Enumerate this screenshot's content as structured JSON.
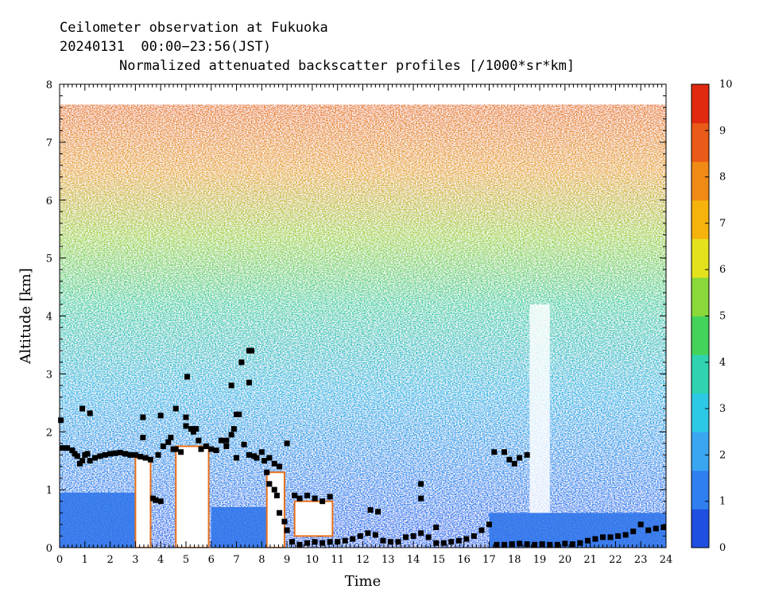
{
  "header": {
    "title_line1": "Ceilometer observation at Fukuoka",
    "title_line2": "20240131  00:00−23:56(JST)",
    "title_line3": "Normalized attenuated backscatter profiles [/1000*sr*km]"
  },
  "chart_data": {
    "type": "heatmap",
    "title": "Normalized attenuated backscatter profiles [/1000*sr*km]",
    "xlabel": "Time",
    "ylabel": "Altitude [km]",
    "xlim": [
      0,
      24
    ],
    "ylim": [
      0,
      8
    ],
    "data_top_altitude_km": 7.65,
    "x_ticks": [
      "0",
      "1",
      "2",
      "3",
      "4",
      "5",
      "6",
      "7",
      "8",
      "9",
      "10",
      "11",
      "12",
      "13",
      "14",
      "15",
      "16",
      "17",
      "18",
      "19",
      "20",
      "21",
      "22",
      "23",
      "24"
    ],
    "y_ticks": [
      "0",
      "1",
      "2",
      "3",
      "4",
      "5",
      "6",
      "7",
      "8"
    ],
    "colorbar": {
      "range": [
        0,
        10
      ],
      "ticks": [
        "0",
        "1",
        "2",
        "3",
        "4",
        "5",
        "6",
        "7",
        "8",
        "9",
        "10"
      ],
      "colors": [
        "#1f4fe0",
        "#2f7ff0",
        "#3aa6f2",
        "#2cc9e6",
        "#2fd3b0",
        "#44d35a",
        "#8ad83a",
        "#e4e21c",
        "#f6b30c",
        "#f08a16",
        "#ea5a18",
        "#e02a10"
      ]
    },
    "series": [
      {
        "name": "",
        "marker": "square",
        "color": "#000000",
        "points": [
          {
            "x": 0.1,
            "y": 1.72
          },
          {
            "x": 0.3,
            "y": 1.72
          },
          {
            "x": 0.5,
            "y": 1.68
          },
          {
            "x": 0.6,
            "y": 1.62
          },
          {
            "x": 0.7,
            "y": 1.58
          },
          {
            "x": 0.8,
            "y": 1.45
          },
          {
            "x": 0.9,
            "y": 1.5
          },
          {
            "x": 1.0,
            "y": 1.6
          },
          {
            "x": 1.1,
            "y": 1.62
          },
          {
            "x": 1.2,
            "y": 1.5
          },
          {
            "x": 1.4,
            "y": 1.55
          },
          {
            "x": 1.6,
            "y": 1.58
          },
          {
            "x": 1.8,
            "y": 1.6
          },
          {
            "x": 2.0,
            "y": 1.62
          },
          {
            "x": 2.2,
            "y": 1.63
          },
          {
            "x": 2.4,
            "y": 1.64
          },
          {
            "x": 2.6,
            "y": 1.62
          },
          {
            "x": 2.8,
            "y": 1.6
          },
          {
            "x": 3.0,
            "y": 1.6
          },
          {
            "x": 3.2,
            "y": 1.57
          },
          {
            "x": 3.4,
            "y": 1.55
          },
          {
            "x": 3.6,
            "y": 1.52
          },
          {
            "x": 3.7,
            "y": 0.85
          },
          {
            "x": 3.8,
            "y": 0.82
          },
          {
            "x": 4.0,
            "y": 0.8
          },
          {
            "x": 3.9,
            "y": 1.6
          },
          {
            "x": 4.1,
            "y": 1.75
          },
          {
            "x": 4.3,
            "y": 1.82
          },
          {
            "x": 4.5,
            "y": 1.7
          },
          {
            "x": 4.6,
            "y": 1.7
          },
          {
            "x": 4.8,
            "y": 1.65
          },
          {
            "x": 5.0,
            "y": 2.1
          },
          {
            "x": 5.2,
            "y": 2.05
          },
          {
            "x": 5.3,
            "y": 2.0
          },
          {
            "x": 5.5,
            "y": 1.85
          },
          {
            "x": 5.6,
            "y": 1.7
          },
          {
            "x": 5.8,
            "y": 1.75
          },
          {
            "x": 6.0,
            "y": 1.7
          },
          {
            "x": 6.2,
            "y": 1.68
          },
          {
            "x": 6.4,
            "y": 1.85
          },
          {
            "x": 6.6,
            "y": 1.75
          },
          {
            "x": 6.8,
            "y": 1.95
          },
          {
            "x": 6.9,
            "y": 2.05
          },
          {
            "x": 7.0,
            "y": 1.55
          },
          {
            "x": 7.1,
            "y": 2.3
          },
          {
            "x": 7.3,
            "y": 1.78
          },
          {
            "x": 7.5,
            "y": 1.6
          },
          {
            "x": 7.7,
            "y": 1.58
          },
          {
            "x": 7.8,
            "y": 1.55
          },
          {
            "x": 8.0,
            "y": 1.65
          },
          {
            "x": 8.1,
            "y": 1.5
          },
          {
            "x": 8.2,
            "y": 1.3
          },
          {
            "x": 8.3,
            "y": 1.1
          },
          {
            "x": 8.5,
            "y": 1.0
          },
          {
            "x": 8.6,
            "y": 0.9
          },
          {
            "x": 8.7,
            "y": 0.6
          },
          {
            "x": 8.9,
            "y": 0.45
          },
          {
            "x": 9.0,
            "y": 0.3
          },
          {
            "x": 9.2,
            "y": 0.1
          },
          {
            "x": 9.5,
            "y": 0.05
          },
          {
            "x": 9.8,
            "y": 0.08
          },
          {
            "x": 10.1,
            "y": 0.1
          },
          {
            "x": 10.4,
            "y": 0.08
          },
          {
            "x": 10.7,
            "y": 0.1
          },
          {
            "x": 11.0,
            "y": 0.1
          },
          {
            "x": 11.3,
            "y": 0.12
          },
          {
            "x": 11.6,
            "y": 0.15
          },
          {
            "x": 11.9,
            "y": 0.2
          },
          {
            "x": 12.2,
            "y": 0.25
          },
          {
            "x": 12.5,
            "y": 0.22
          },
          {
            "x": 12.8,
            "y": 0.12
          },
          {
            "x": 13.1,
            "y": 0.1
          },
          {
            "x": 13.4,
            "y": 0.1
          },
          {
            "x": 13.7,
            "y": 0.18
          },
          {
            "x": 14.0,
            "y": 0.2
          },
          {
            "x": 14.3,
            "y": 0.25
          },
          {
            "x": 14.6,
            "y": 0.18
          },
          {
            "x": 14.9,
            "y": 0.08
          },
          {
            "x": 15.2,
            "y": 0.08
          },
          {
            "x": 15.5,
            "y": 0.1
          },
          {
            "x": 15.8,
            "y": 0.12
          },
          {
            "x": 16.1,
            "y": 0.15
          },
          {
            "x": 16.4,
            "y": 0.2
          },
          {
            "x": 16.7,
            "y": 0.3
          },
          {
            "x": 17.0,
            "y": 0.4
          },
          {
            "x": 17.3,
            "y": 0.05
          },
          {
            "x": 17.6,
            "y": 0.05
          },
          {
            "x": 17.9,
            "y": 0.06
          },
          {
            "x": 18.2,
            "y": 0.07
          },
          {
            "x": 18.5,
            "y": 0.06
          },
          {
            "x": 18.8,
            "y": 0.05
          },
          {
            "x": 19.1,
            "y": 0.06
          },
          {
            "x": 19.4,
            "y": 0.05
          },
          {
            "x": 19.7,
            "y": 0.05
          },
          {
            "x": 20.0,
            "y": 0.07
          },
          {
            "x": 20.3,
            "y": 0.06
          },
          {
            "x": 20.6,
            "y": 0.08
          },
          {
            "x": 20.9,
            "y": 0.12
          },
          {
            "x": 21.2,
            "y": 0.15
          },
          {
            "x": 21.5,
            "y": 0.18
          },
          {
            "x": 21.8,
            "y": 0.18
          },
          {
            "x": 22.1,
            "y": 0.2
          },
          {
            "x": 22.4,
            "y": 0.22
          },
          {
            "x": 22.7,
            "y": 0.28
          },
          {
            "x": 23.0,
            "y": 0.4
          },
          {
            "x": 23.3,
            "y": 0.3
          },
          {
            "x": 23.6,
            "y": 0.33
          },
          {
            "x": 23.9,
            "y": 0.35
          }
        ]
      },
      {
        "name": "",
        "marker": "square",
        "color": "#000000",
        "points": [
          {
            "x": 0.05,
            "y": 2.2
          },
          {
            "x": 0.9,
            "y": 2.4
          },
          {
            "x": 1.2,
            "y": 2.32
          },
          {
            "x": 3.3,
            "y": 2.25
          },
          {
            "x": 3.3,
            "y": 1.9
          },
          {
            "x": 4.0,
            "y": 2.28
          },
          {
            "x": 4.4,
            "y": 1.9
          },
          {
            "x": 4.6,
            "y": 2.4
          },
          {
            "x": 5.0,
            "y": 2.25
          },
          {
            "x": 5.05,
            "y": 2.95
          },
          {
            "x": 5.4,
            "y": 2.05
          },
          {
            "x": 6.6,
            "y": 1.85
          },
          {
            "x": 6.8,
            "y": 2.8
          },
          {
            "x": 7.0,
            "y": 2.3
          },
          {
            "x": 7.2,
            "y": 3.2
          },
          {
            "x": 7.5,
            "y": 3.4
          },
          {
            "x": 7.6,
            "y": 3.4
          },
          {
            "x": 7.5,
            "y": 2.85
          },
          {
            "x": 8.3,
            "y": 1.55
          },
          {
            "x": 8.5,
            "y": 1.45
          },
          {
            "x": 8.7,
            "y": 1.4
          },
          {
            "x": 9.0,
            "y": 1.8
          },
          {
            "x": 9.3,
            "y": 0.9
          },
          {
            "x": 9.5,
            "y": 0.85
          },
          {
            "x": 9.8,
            "y": 0.9
          },
          {
            "x": 10.1,
            "y": 0.85
          },
          {
            "x": 10.4,
            "y": 0.8
          },
          {
            "x": 10.7,
            "y": 0.88
          },
          {
            "x": 12.3,
            "y": 0.65
          },
          {
            "x": 12.6,
            "y": 0.62
          },
          {
            "x": 14.3,
            "y": 1.1
          },
          {
            "x": 14.3,
            "y": 0.85
          },
          {
            "x": 14.9,
            "y": 0.35
          },
          {
            "x": 17.2,
            "y": 1.65
          },
          {
            "x": 17.6,
            "y": 1.65
          },
          {
            "x": 17.8,
            "y": 1.52
          },
          {
            "x": 18.0,
            "y": 1.45
          },
          {
            "x": 18.2,
            "y": 1.55
          },
          {
            "x": 18.5,
            "y": 1.6
          }
        ]
      }
    ]
  }
}
